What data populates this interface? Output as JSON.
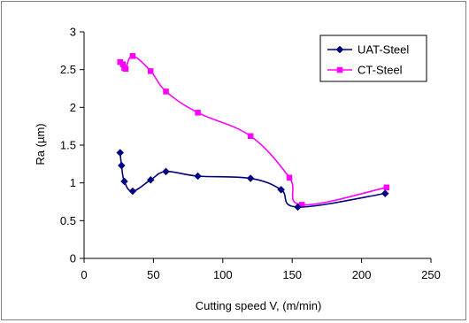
{
  "chart_data": {
    "type": "line",
    "title": "",
    "xlabel": "Cutting speed V, (m/min)",
    "ylabel": "Ra (µm)",
    "xlim": [
      0,
      250
    ],
    "ylim": [
      0,
      3
    ],
    "xticks": [
      0,
      50,
      100,
      150,
      200,
      250
    ],
    "yticks": [
      0,
      0.5,
      1,
      1.5,
      2,
      2.5,
      3
    ],
    "xtick_labels": [
      "0",
      "50",
      "100",
      "150",
      "200",
      "250"
    ],
    "ytick_labels": [
      "0",
      "0.5",
      "1",
      "1.5",
      "2",
      "2.5",
      "3"
    ],
    "grid": false,
    "legend_position": "top-right",
    "series": [
      {
        "name": "UAT-Steel",
        "color": "#000080",
        "marker": "diamond",
        "x": [
          26,
          27,
          29,
          35,
          48,
          59,
          82,
          120,
          142,
          154,
          217
        ],
        "y": [
          1.4,
          1.23,
          1.02,
          0.89,
          1.04,
          1.15,
          1.09,
          1.06,
          0.91,
          0.68,
          0.86
        ]
      },
      {
        "name": "CT-Steel",
        "color": "#ff00ff",
        "marker": "square",
        "x": [
          26,
          28,
          29,
          30,
          35,
          48,
          59,
          82,
          120,
          148,
          157,
          218
        ],
        "y": [
          2.6,
          2.57,
          2.52,
          2.51,
          2.68,
          2.48,
          2.21,
          1.93,
          1.62,
          1.07,
          0.71,
          0.94
        ]
      }
    ]
  }
}
